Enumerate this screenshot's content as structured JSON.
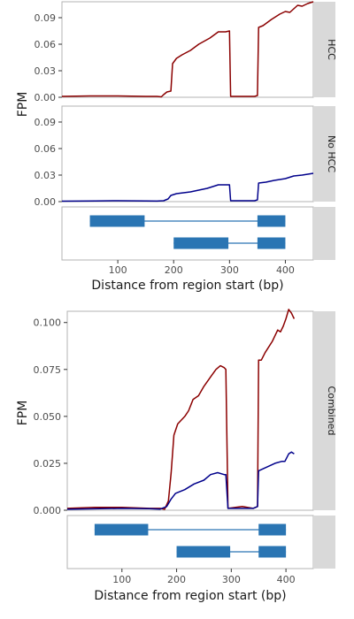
{
  "chart_data": [
    {
      "type": "line",
      "title": "",
      "ylabel": "FPM",
      "xlabel": "Distance from region start (bp)",
      "xlim": [
        0,
        450
      ],
      "x_ticks": [
        "100",
        "200",
        "300",
        "400"
      ],
      "facets": [
        {
          "name": "HCC",
          "ylim": [
            0,
            0.108
          ],
          "y_ticks": [
            "0.00",
            "0.03",
            "0.06",
            "0.09"
          ],
          "series": [
            {
              "color": "#8b0000",
              "points": [
                [
                  0,
                  0.001
                ],
                [
                  50,
                  0.0015
                ],
                [
                  100,
                  0.0015
                ],
                [
                  150,
                  0.001
                ],
                [
                  170,
                  0.001
                ],
                [
                  178,
                  0.0005
                ],
                [
                  182,
                  0.003
                ],
                [
                  188,
                  0.006
                ],
                [
                  195,
                  0.007
                ],
                [
                  198,
                  0.038
                ],
                [
                  205,
                  0.044
                ],
                [
                  215,
                  0.048
                ],
                [
                  230,
                  0.053
                ],
                [
                  245,
                  0.06
                ],
                [
                  265,
                  0.067
                ],
                [
                  280,
                  0.074
                ],
                [
                  293,
                  0.074
                ],
                [
                  300,
                  0.075
                ],
                [
                  302,
                  0.001
                ],
                [
                  320,
                  0.001
                ],
                [
                  345,
                  0.001
                ],
                [
                  350,
                  0.002
                ],
                [
                  352,
                  0.079
                ],
                [
                  360,
                  0.081
                ],
                [
                  375,
                  0.088
                ],
                [
                  390,
                  0.094
                ],
                [
                  400,
                  0.097
                ],
                [
                  408,
                  0.096
                ],
                [
                  415,
                  0.1
                ],
                [
                  422,
                  0.104
                ],
                [
                  430,
                  0.103
                ],
                [
                  440,
                  0.106
                ],
                [
                  450,
                  0.108
                ]
              ]
            }
          ]
        },
        {
          "name": "No HCC",
          "ylim": [
            0,
            0.108
          ],
          "y_ticks": [
            "0.00",
            "0.03",
            "0.06",
            "0.09"
          ],
          "series": [
            {
              "color": "#00008b",
              "points": [
                [
                  0,
                  0.0005
                ],
                [
                  60,
                  0.0008
                ],
                [
                  100,
                  0.001
                ],
                [
                  150,
                  0.0008
                ],
                [
                  170,
                  0.0006
                ],
                [
                  182,
                  0.001
                ],
                [
                  190,
                  0.003
                ],
                [
                  195,
                  0.007
                ],
                [
                  205,
                  0.009
                ],
                [
                  230,
                  0.011
                ],
                [
                  260,
                  0.015
                ],
                [
                  280,
                  0.019
                ],
                [
                  295,
                  0.019
                ],
                [
                  300,
                  0.019
                ],
                [
                  302,
                  0.001
                ],
                [
                  320,
                  0.001
                ],
                [
                  345,
                  0.001
                ],
                [
                  350,
                  0.002
                ],
                [
                  352,
                  0.021
                ],
                [
                  365,
                  0.022
                ],
                [
                  380,
                  0.024
                ],
                [
                  400,
                  0.026
                ],
                [
                  415,
                  0.029
                ],
                [
                  430,
                  0.03
                ],
                [
                  450,
                  0.032
                ]
              ]
            }
          ]
        }
      ],
      "gene_model": [
        {
          "exons": [
            [
              50,
              148
            ],
            [
              350,
              400
            ]
          ]
        },
        {
          "exons": [
            [
              200,
              298
            ],
            [
              350,
              400
            ]
          ]
        }
      ]
    },
    {
      "type": "line",
      "title": "",
      "ylabel": "FPM",
      "xlabel": "Distance from region start (bp)",
      "xlim": [
        0,
        450
      ],
      "x_ticks": [
        "100",
        "200",
        "300",
        "400"
      ],
      "facets": [
        {
          "name": "Combined",
          "ylim": [
            0,
            0.106
          ],
          "y_ticks": [
            "0.000",
            "0.025",
            "0.050",
            "0.075",
            "0.100"
          ],
          "series": [
            {
              "color": "#8b0000",
              "points": [
                [
                  0,
                  0.001
                ],
                [
                  50,
                  0.0015
                ],
                [
                  100,
                  0.0015
                ],
                [
                  150,
                  0.001
                ],
                [
                  170,
                  0.001
                ],
                [
                  178,
                  0.0005
                ],
                [
                  185,
                  0.005
                ],
                [
                  190,
                  0.02
                ],
                [
                  195,
                  0.04
                ],
                [
                  202,
                  0.046
                ],
                [
                  215,
                  0.05
                ],
                [
                  222,
                  0.053
                ],
                [
                  230,
                  0.059
                ],
                [
                  240,
                  0.061
                ],
                [
                  250,
                  0.066
                ],
                [
                  262,
                  0.071
                ],
                [
                  272,
                  0.075
                ],
                [
                  280,
                  0.077
                ],
                [
                  287,
                  0.076
                ],
                [
                  290,
                  0.075
                ],
                [
                  294,
                  0.001
                ],
                [
                  320,
                  0.002
                ],
                [
                  340,
                  0.001
                ],
                [
                  348,
                  0.002
                ],
                [
                  350,
                  0.08
                ],
                [
                  355,
                  0.08
                ],
                [
                  362,
                  0.084
                ],
                [
                  375,
                  0.09
                ],
                [
                  385,
                  0.096
                ],
                [
                  390,
                  0.095
                ],
                [
                  395,
                  0.098
                ],
                [
                  400,
                  0.102
                ],
                [
                  405,
                  0.107
                ],
                [
                  410,
                  0.105
                ],
                [
                  415,
                  0.102
                ]
              ]
            },
            {
              "color": "#00008b",
              "points": [
                [
                  0,
                  0.0005
                ],
                [
                  60,
                  0.0008
                ],
                [
                  100,
                  0.001
                ],
                [
                  150,
                  0.0008
                ],
                [
                  170,
                  0.0006
                ],
                [
                  182,
                  0.002
                ],
                [
                  190,
                  0.006
                ],
                [
                  198,
                  0.009
                ],
                [
                  215,
                  0.011
                ],
                [
                  232,
                  0.014
                ],
                [
                  250,
                  0.016
                ],
                [
                  262,
                  0.019
                ],
                [
                  275,
                  0.02
                ],
                [
                  287,
                  0.019
                ],
                [
                  290,
                  0.019
                ],
                [
                  294,
                  0.001
                ],
                [
                  320,
                  0.001
                ],
                [
                  340,
                  0.001
                ],
                [
                  348,
                  0.002
                ],
                [
                  350,
                  0.021
                ],
                [
                  365,
                  0.023
                ],
                [
                  380,
                  0.025
                ],
                [
                  392,
                  0.026
                ],
                [
                  398,
                  0.026
                ],
                [
                  405,
                  0.03
                ],
                [
                  410,
                  0.031
                ],
                [
                  415,
                  0.03
                ]
              ]
            }
          ]
        }
      ],
      "gene_model": [
        {
          "exons": [
            [
              50,
              148
            ],
            [
              350,
              400
            ]
          ]
        },
        {
          "exons": [
            [
              200,
              298
            ],
            [
              350,
              400
            ]
          ]
        }
      ]
    }
  ],
  "colors": {
    "panel_bg": "#ebebeb",
    "strip_bg": "#d9d9d9",
    "gene_fill": "#2a75b3",
    "panel_border": "#b3b3b3"
  }
}
